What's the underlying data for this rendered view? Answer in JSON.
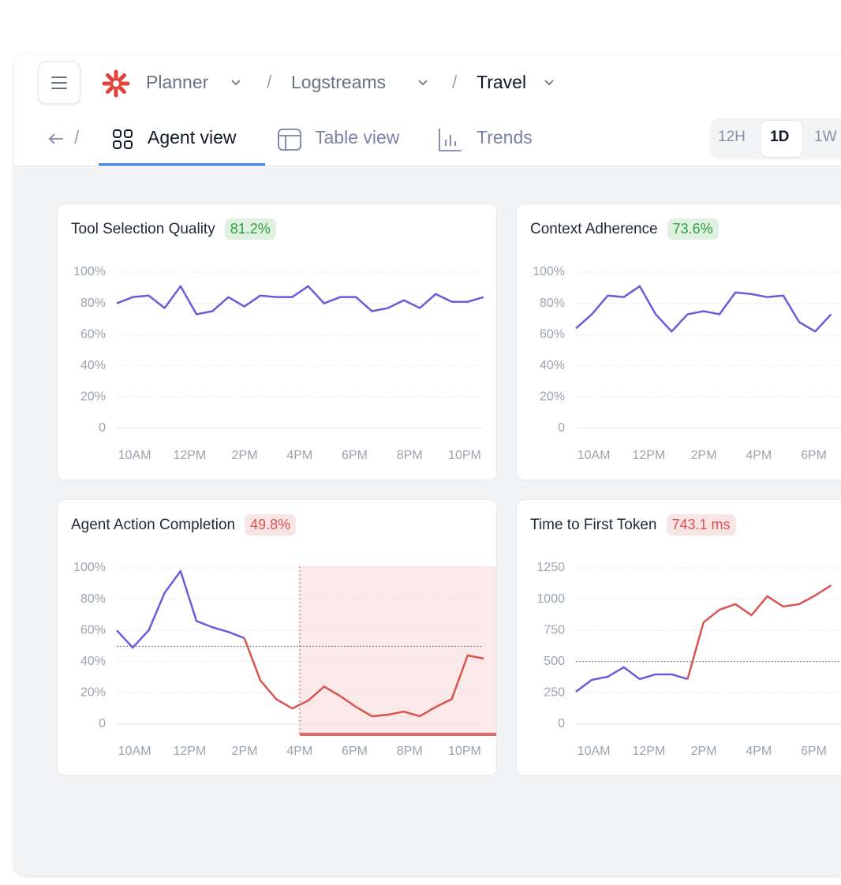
{
  "header": {
    "breadcrumbs": [
      "Planner",
      "Logstreams",
      "Travel"
    ],
    "separator": "/"
  },
  "tabs": [
    "Agent view",
    "Table view",
    "Trends"
  ],
  "time_ranges": [
    "12H",
    "1D",
    "1W"
  ],
  "chart_data": [
    {
      "type": "line",
      "title": "Tool Selection Quality",
      "badge": "81.2%",
      "badge_color": "#2e9e3e",
      "x": [
        9.35,
        9.93,
        10.51,
        11.09,
        11.67,
        12.25,
        12.83,
        13.41,
        13.99,
        14.57,
        15.15,
        15.73,
        16.31,
        16.89,
        17.47,
        18.05,
        18.63,
        19.21,
        19.79,
        20.37,
        20.95,
        21.53,
        22.11,
        22.69
      ],
      "series": [
        {
          "color": "#6a5cd8",
          "values": [
            80,
            84,
            85,
            77,
            91,
            73,
            75,
            84,
            78,
            85,
            84,
            84,
            91,
            80,
            84,
            84,
            75,
            77,
            82,
            77,
            86,
            81,
            81,
            84
          ]
        }
      ],
      "xlim": [
        9.35,
        22.69
      ],
      "xticks": [
        {
          "value": 10,
          "label": "10AM"
        },
        {
          "value": 12,
          "label": "12PM"
        },
        {
          "value": 14,
          "label": "2PM"
        },
        {
          "value": 16,
          "label": "4PM"
        },
        {
          "value": 18,
          "label": "6PM"
        },
        {
          "value": 20,
          "label": "8PM"
        },
        {
          "value": 22,
          "label": "10PM"
        }
      ],
      "ylim": [
        0,
        100
      ],
      "yticks": [
        0,
        {
          "value": 20,
          "label": "20%"
        },
        {
          "value": 40,
          "label": "40%"
        },
        {
          "value": 60,
          "label": "60%"
        },
        {
          "value": 80,
          "label": "80%"
        },
        {
          "value": 100,
          "label": "100%"
        }
      ],
      "grid": true
    },
    {
      "type": "line",
      "title": "Context Adherence",
      "badge": "73.6%",
      "badge_color": "#2e9e3e",
      "x": [
        9.35,
        9.93,
        10.51,
        11.09,
        11.67,
        12.25,
        12.83,
        13.41,
        13.99,
        14.57,
        15.15,
        15.73,
        16.31,
        16.89,
        17.47,
        18.05,
        18.63
      ],
      "series": [
        {
          "color": "#6a5cd8",
          "values": [
            64,
            73,
            85,
            84,
            91,
            73,
            62,
            73,
            75,
            73,
            87,
            86,
            84,
            85,
            68,
            62,
            73
          ]
        }
      ],
      "xlim": [
        9.35,
        22.69
      ],
      "xticks": [
        {
          "value": 10,
          "label": "10AM"
        },
        {
          "value": 12,
          "label": "12PM"
        },
        {
          "value": 14,
          "label": "2PM"
        },
        {
          "value": 16,
          "label": "4PM"
        },
        {
          "value": 18,
          "label": "6PM"
        }
      ],
      "ylim": [
        0,
        100
      ],
      "yticks": [
        0,
        {
          "value": 20,
          "label": "20%"
        },
        {
          "value": 40,
          "label": "40%"
        },
        {
          "value": 60,
          "label": "60%"
        },
        {
          "value": 80,
          "label": "80%"
        },
        {
          "value": 100,
          "label": "100%"
        }
      ],
      "grid": true
    },
    {
      "type": "line",
      "title": "Agent Action Completion",
      "badge": "49.8%",
      "badge_color": "#d9534f",
      "x": [
        9.35,
        9.93,
        10.51,
        11.09,
        11.67,
        12.25,
        12.83,
        13.41,
        13.99,
        14.57,
        15.15,
        15.73,
        16.31,
        16.89,
        17.47,
        18.05,
        18.63,
        19.21,
        19.79,
        20.37,
        20.95,
        21.53,
        22.11,
        22.69
      ],
      "series": [
        {
          "color": "#6a5cd8",
          "values": [
            60,
            49,
            60,
            84,
            98,
            66,
            62,
            59,
            55,
            null,
            null,
            null,
            null,
            null,
            null,
            null,
            null,
            null,
            null,
            null,
            null,
            null,
            null,
            null
          ]
        },
        {
          "color": "#d9534f",
          "values": [
            null,
            null,
            null,
            null,
            null,
            null,
            null,
            null,
            55,
            28,
            16,
            10,
            15,
            24,
            18,
            11,
            5,
            6,
            8,
            5,
            11,
            16,
            44,
            42
          ]
        }
      ],
      "reference_line": 49.8,
      "highlight_from": 16,
      "xlim": [
        9.35,
        22.69
      ],
      "xticks": [
        {
          "value": 10,
          "label": "10AM"
        },
        {
          "value": 12,
          "label": "12PM"
        },
        {
          "value": 14,
          "label": "2PM"
        },
        {
          "value": 16,
          "label": "4PM"
        },
        {
          "value": 18,
          "label": "6PM"
        },
        {
          "value": 20,
          "label": "8PM"
        },
        {
          "value": 22,
          "label": "10PM"
        }
      ],
      "ylim": [
        0,
        100
      ],
      "yticks": [
        0,
        {
          "value": 20,
          "label": "20%"
        },
        {
          "value": 40,
          "label": "40%"
        },
        {
          "value": 60,
          "label": "60%"
        },
        {
          "value": 80,
          "label": "80%"
        },
        {
          "value": 100,
          "label": "100%"
        }
      ],
      "grid": true
    },
    {
      "type": "line",
      "title": "Time to First Token",
      "badge": "743.1 ms",
      "badge_color": "#d9534f",
      "x": [
        9.35,
        9.93,
        10.51,
        11.09,
        11.67,
        12.25,
        12.83,
        13.41,
        13.99,
        14.57,
        15.15,
        15.73,
        16.31,
        16.89,
        17.47,
        18.05,
        18.63
      ],
      "series": [
        {
          "color": "#6a5cd8",
          "values": [
            259,
            354,
            379,
            455,
            360,
            398,
            398,
            360,
            null,
            null,
            null,
            null,
            null,
            null,
            null,
            null,
            null
          ]
        },
        {
          "color": "#d9534f",
          "values": [
            null,
            null,
            null,
            null,
            null,
            null,
            null,
            360,
            814,
            915,
            960,
            871,
            1023,
            941,
            960,
            1029,
            1111
          ]
        }
      ],
      "reference_line": 500,
      "xlim": [
        9.35,
        22.69
      ],
      "xticks": [
        {
          "value": 10,
          "label": "10AM"
        },
        {
          "value": 12,
          "label": "12PM"
        },
        {
          "value": 14,
          "label": "2PM"
        },
        {
          "value": 16,
          "label": "4PM"
        },
        {
          "value": 18,
          "label": "6PM"
        }
      ],
      "ylim": [
        0,
        1250
      ],
      "yticks": [
        0,
        250,
        500,
        750,
        1000,
        1250
      ],
      "grid": true
    }
  ]
}
